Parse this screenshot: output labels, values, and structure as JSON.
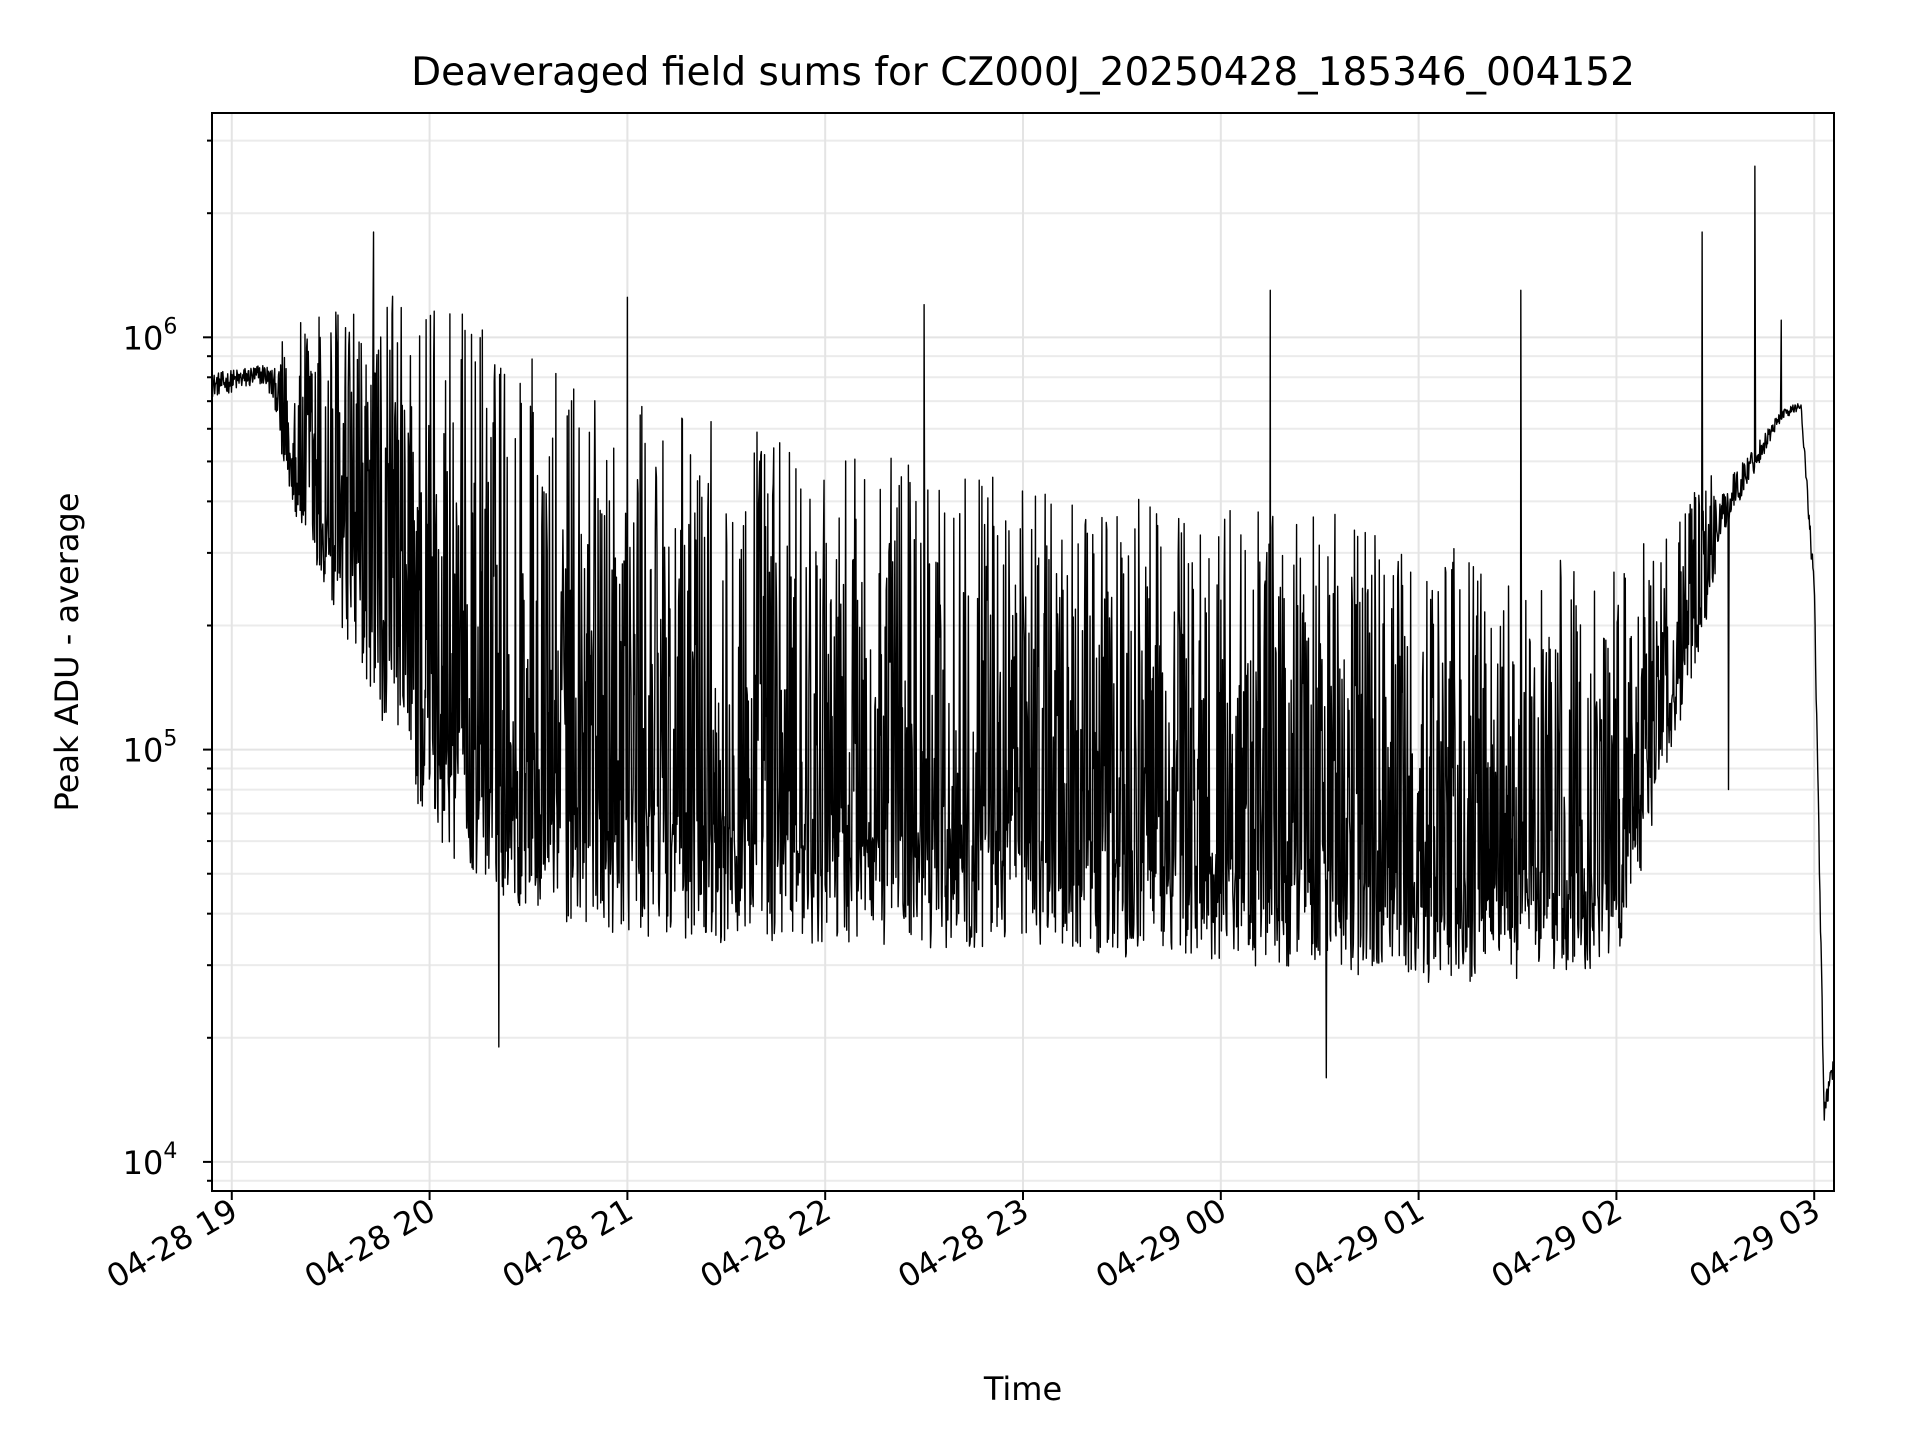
{
  "chart_data": {
    "type": "line",
    "title": "Deaveraged field sums for CZ000J_20250428_185346_004152",
    "xlabel": "Time",
    "ylabel": "Peak ADU - average",
    "yscale": "log",
    "ylim": [
      8500,
      3500000
    ],
    "xlim": [
      "2025-04-28 18:54",
      "2025-04-29 03:06"
    ],
    "grid": true,
    "x_ticks": [
      "04-28 19",
      "04-28 20",
      "04-28 21",
      "04-28 22",
      "04-28 23",
      "04-29 00",
      "04-29 01",
      "04-29 02",
      "04-29 03"
    ],
    "y_tick_labels": [
      {
        "value": 10000,
        "base": "10",
        "exp": "4"
      },
      {
        "value": 100000,
        "base": "10",
        "exp": "5"
      },
      {
        "value": 1000000,
        "base": "10",
        "exp": "6"
      }
    ],
    "envelope": {
      "description": "",
      "x": [
        "2025-04-28 18:54",
        "2025-04-28 19:10",
        "2025-04-28 19:20",
        "2025-04-28 19:40",
        "2025-04-28 20:00",
        "2025-04-28 20:30",
        "2025-04-28 21:00",
        "2025-04-28 22:00",
        "2025-04-28 23:00",
        "2025-04-29 00:00",
        "2025-04-29 00:30",
        "2025-04-29 01:00",
        "2025-04-29 01:30",
        "2025-04-29 02:00",
        "2025-04-29 02:10",
        "2025-04-29 02:30",
        "2025-04-29 02:50",
        "2025-04-29 02:56",
        "2025-04-29 03:00",
        "2025-04-29 03:03",
        "2025-04-29 03:06"
      ],
      "upper": [
        900000,
        950000,
        1100000,
        1400000,
        1300000,
        900000,
        700000,
        550000,
        450000,
        400000,
        380000,
        330000,
        280000,
        300000,
        320000,
        500000,
        700000,
        720000,
        300000,
        15000,
        20000
      ],
      "lower": [
        650000,
        700000,
        350000,
        150000,
        60000,
        40000,
        35000,
        33000,
        33000,
        30000,
        29000,
        27000,
        27000,
        30000,
        60000,
        250000,
        600000,
        650000,
        200000,
        11500,
        15000
      ]
    },
    "spikes": [
      {
        "x": "2025-04-28 19:43",
        "y": 1800000
      },
      {
        "x": "2025-04-28 21:00",
        "y": 1250000
      },
      {
        "x": "2025-04-28 22:30",
        "y": 1200000
      },
      {
        "x": "2025-04-29 00:15",
        "y": 1300000
      },
      {
        "x": "2025-04-29 01:31",
        "y": 1300000
      },
      {
        "x": "2025-04-29 02:26",
        "y": 1800000
      },
      {
        "x": "2025-04-29 02:42",
        "y": 2600000
      },
      {
        "x": "2025-04-29 02:50",
        "y": 1100000
      }
    ],
    "dips": [
      {
        "x": "2025-04-28 20:21",
        "y": 19000
      },
      {
        "x": "2025-04-29 00:32",
        "y": 16000
      },
      {
        "x": "2025-04-29 02:34",
        "y": 80000
      }
    ]
  }
}
